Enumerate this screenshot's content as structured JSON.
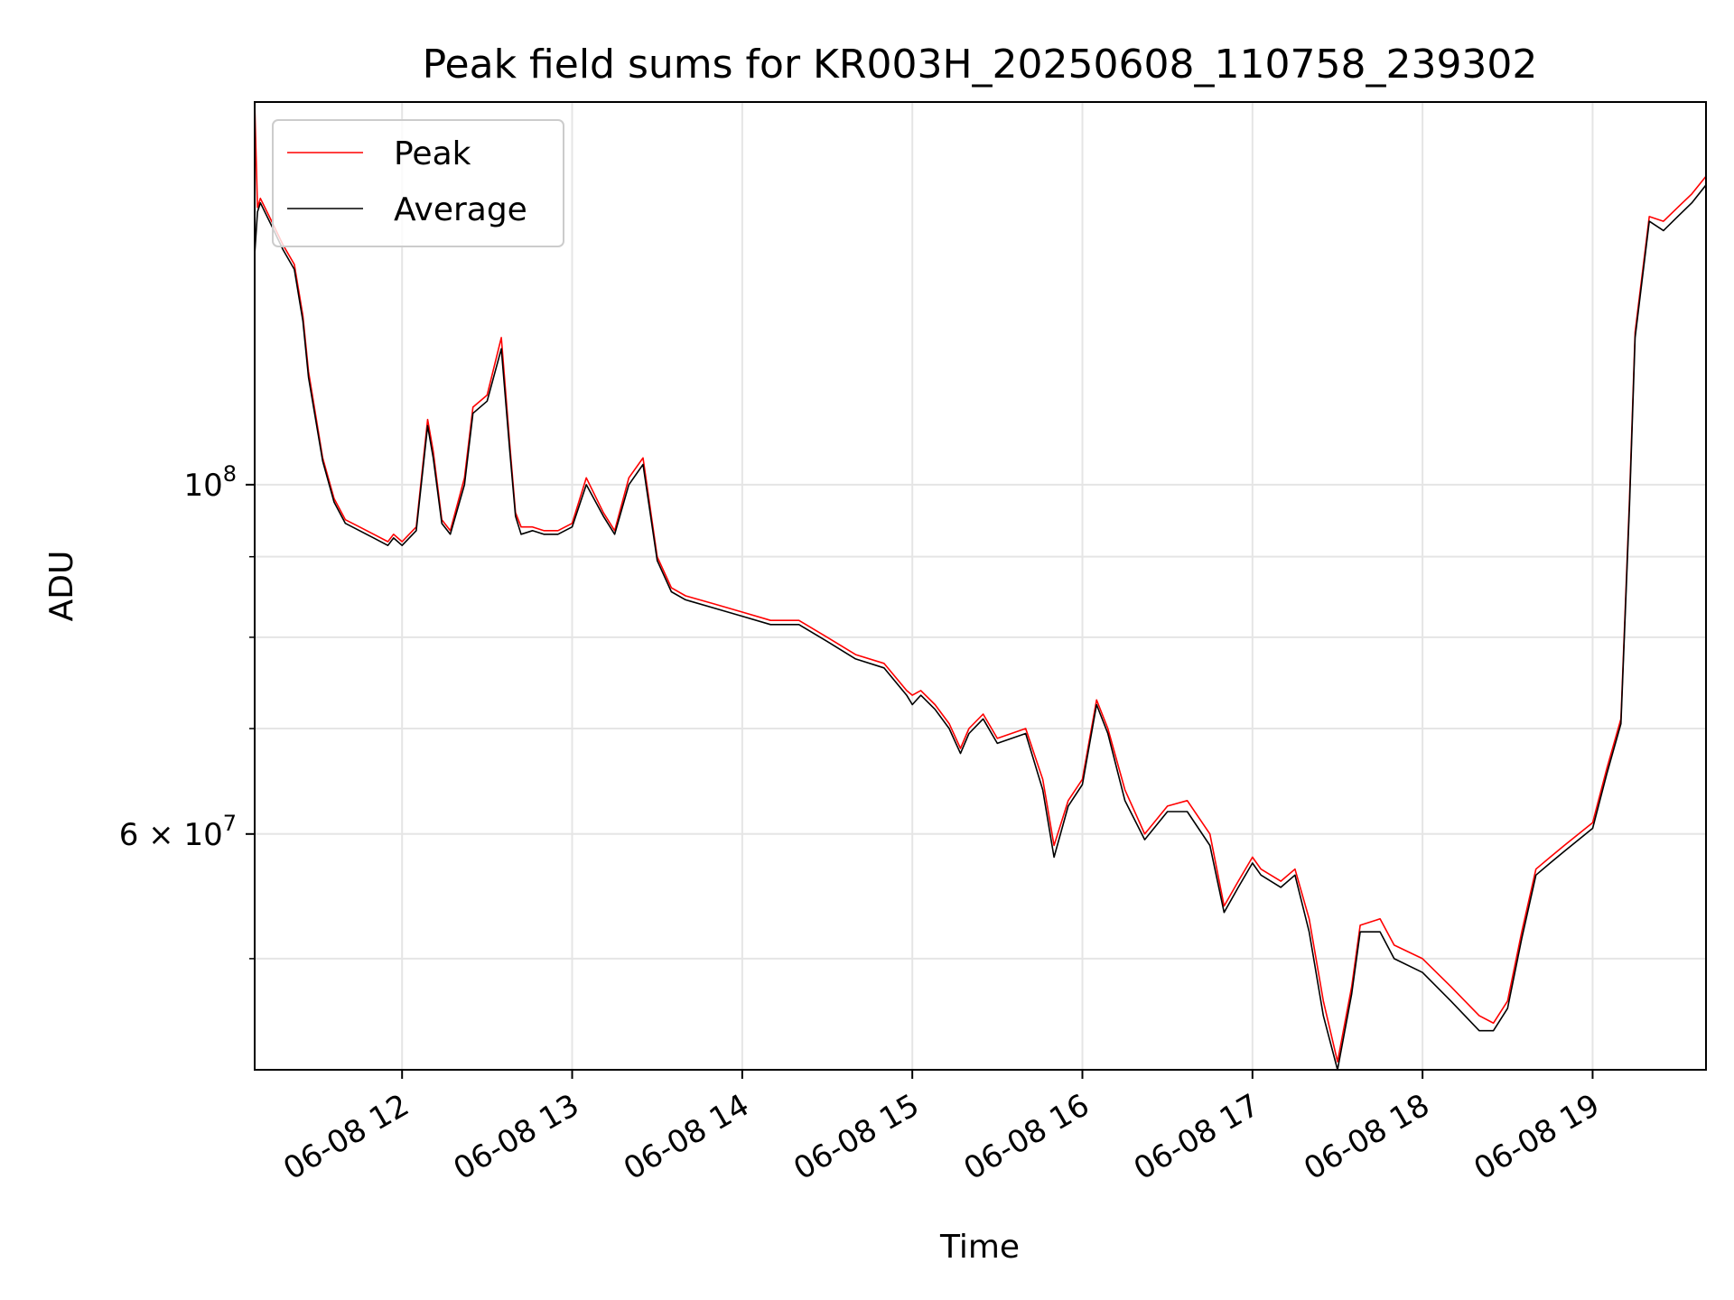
{
  "chart_data": {
    "type": "line",
    "title": "Peak field sums for KR003H_20250608_110758_239302",
    "xlabel": "Time",
    "ylabel": "ADU",
    "yscale": "log",
    "xlim": [
      "2025-06-08 11:08",
      "2025-06-08 19:40"
    ],
    "ylim": [
      42500000,
      175000000
    ],
    "grid": true,
    "legend": "top-left",
    "x_ticks": [
      "06-08 12",
      "06-08 13",
      "06-08 14",
      "06-08 15",
      "06-08 16",
      "06-08 17",
      "06-08 18",
      "06-08 19"
    ],
    "y_ticks": [
      {
        "value": 60000000,
        "label": "6 × 10",
        "exp": "7"
      },
      {
        "value": 100000000,
        "label": "10",
        "exp": "8"
      }
    ],
    "y_minor_ticks": [
      50000000,
      70000000,
      80000000,
      90000000
    ],
    "series": [
      {
        "name": "Peak",
        "color": "#ff0000",
        "x": [
          "2025-06-08 11:08",
          "2025-06-08 11:09",
          "2025-06-08 11:10",
          "2025-06-08 11:14",
          "2025-06-08 11:18",
          "2025-06-08 11:22",
          "2025-06-08 11:25",
          "2025-06-08 11:27",
          "2025-06-08 11:32",
          "2025-06-08 11:36",
          "2025-06-08 11:40",
          "2025-06-08 11:45",
          "2025-06-08 11:50",
          "2025-06-08 11:55",
          "2025-06-08 11:57",
          "2025-06-08 12:00",
          "2025-06-08 12:05",
          "2025-06-08 12:09",
          "2025-06-08 12:11",
          "2025-06-08 12:14",
          "2025-06-08 12:17",
          "2025-06-08 12:22",
          "2025-06-08 12:25",
          "2025-06-08 12:30",
          "2025-06-08 12:35",
          "2025-06-08 12:38",
          "2025-06-08 12:40",
          "2025-06-08 12:42",
          "2025-06-08 12:46",
          "2025-06-08 12:50",
          "2025-06-08 12:55",
          "2025-06-08 13:00",
          "2025-06-08 13:05",
          "2025-06-08 13:11",
          "2025-06-08 13:15",
          "2025-06-08 13:20",
          "2025-06-08 13:25",
          "2025-06-08 13:30",
          "2025-06-08 13:35",
          "2025-06-08 13:40",
          "2025-06-08 13:50",
          "2025-06-08 14:00",
          "2025-06-08 14:10",
          "2025-06-08 14:20",
          "2025-06-08 14:30",
          "2025-06-08 14:40",
          "2025-06-08 14:50",
          "2025-06-08 14:58",
          "2025-06-08 15:00",
          "2025-06-08 15:03",
          "2025-06-08 15:08",
          "2025-06-08 15:13",
          "2025-06-08 15:17",
          "2025-06-08 15:20",
          "2025-06-08 15:25",
          "2025-06-08 15:30",
          "2025-06-08 15:40",
          "2025-06-08 15:46",
          "2025-06-08 15:50",
          "2025-06-08 15:55",
          "2025-06-08 16:00",
          "2025-06-08 16:05",
          "2025-06-08 16:09",
          "2025-06-08 16:15",
          "2025-06-08 16:22",
          "2025-06-08 16:30",
          "2025-06-08 16:37",
          "2025-06-08 16:45",
          "2025-06-08 16:50",
          "2025-06-08 16:55",
          "2025-06-08 17:00",
          "2025-06-08 17:03",
          "2025-06-08 17:10",
          "2025-06-08 17:15",
          "2025-06-08 17:20",
          "2025-06-08 17:25",
          "2025-06-08 17:30",
          "2025-06-08 17:35",
          "2025-06-08 17:38",
          "2025-06-08 17:45",
          "2025-06-08 17:50",
          "2025-06-08 18:00",
          "2025-06-08 18:10",
          "2025-06-08 18:20",
          "2025-06-08 18:25",
          "2025-06-08 18:30",
          "2025-06-08 18:35",
          "2025-06-08 18:40",
          "2025-06-08 18:45",
          "2025-06-08 18:50",
          "2025-06-08 19:00",
          "2025-06-08 19:05",
          "2025-06-08 19:10",
          "2025-06-08 19:13",
          "2025-06-08 19:15",
          "2025-06-08 19:20",
          "2025-06-08 19:25",
          "2025-06-08 19:30",
          "2025-06-08 19:35",
          "2025-06-08 19:40"
        ],
        "y": [
          175000000,
          150000000,
          152000000,
          147000000,
          142000000,
          138000000,
          128000000,
          118000000,
          104000000,
          98000000,
          95000000,
          94000000,
          93000000,
          92000000,
          93000000,
          92000000,
          94000000,
          110000000,
          105000000,
          95000000,
          93500000,
          101000000,
          112000000,
          114000000,
          124000000,
          106000000,
          96000000,
          94000000,
          94000000,
          93500000,
          93500000,
          94500000,
          101000000,
          96000000,
          93500000,
          101000000,
          104000000,
          90000000,
          86000000,
          85000000,
          84000000,
          83000000,
          82000000,
          82000000,
          80000000,
          78000000,
          77000000,
          74000000,
          73500000,
          74000000,
          72500000,
          70500000,
          68000000,
          70000000,
          71500000,
          69000000,
          70000000,
          65000000,
          59000000,
          63000000,
          65000000,
          73000000,
          70000000,
          64000000,
          60000000,
          62500000,
          63000000,
          60000000,
          54000000,
          56000000,
          58000000,
          57000000,
          56000000,
          57000000,
          53000000,
          47000000,
          43000000,
          48000000,
          52500000,
          53000000,
          51000000,
          50000000,
          48000000,
          46000000,
          45500000,
          47000000,
          52000000,
          57000000,
          58000000,
          59000000,
          61000000,
          66000000,
          71000000,
          98000000,
          125000000,
          148000000,
          147000000,
          150000000,
          153000000,
          157000000
        ]
      },
      {
        "name": "Average",
        "color": "#000000",
        "x": [
          "2025-06-08 11:08",
          "2025-06-08 11:09",
          "2025-06-08 11:10",
          "2025-06-08 11:14",
          "2025-06-08 11:18",
          "2025-06-08 11:22",
          "2025-06-08 11:25",
          "2025-06-08 11:27",
          "2025-06-08 11:32",
          "2025-06-08 11:36",
          "2025-06-08 11:40",
          "2025-06-08 11:45",
          "2025-06-08 11:50",
          "2025-06-08 11:55",
          "2025-06-08 11:57",
          "2025-06-08 12:00",
          "2025-06-08 12:05",
          "2025-06-08 12:09",
          "2025-06-08 12:11",
          "2025-06-08 12:14",
          "2025-06-08 12:17",
          "2025-06-08 12:22",
          "2025-06-08 12:25",
          "2025-06-08 12:30",
          "2025-06-08 12:35",
          "2025-06-08 12:38",
          "2025-06-08 12:40",
          "2025-06-08 12:42",
          "2025-06-08 12:46",
          "2025-06-08 12:50",
          "2025-06-08 12:55",
          "2025-06-08 13:00",
          "2025-06-08 13:05",
          "2025-06-08 13:11",
          "2025-06-08 13:15",
          "2025-06-08 13:20",
          "2025-06-08 13:25",
          "2025-06-08 13:30",
          "2025-06-08 13:35",
          "2025-06-08 13:40",
          "2025-06-08 13:50",
          "2025-06-08 14:00",
          "2025-06-08 14:10",
          "2025-06-08 14:20",
          "2025-06-08 14:30",
          "2025-06-08 14:40",
          "2025-06-08 14:50",
          "2025-06-08 14:58",
          "2025-06-08 15:00",
          "2025-06-08 15:03",
          "2025-06-08 15:08",
          "2025-06-08 15:13",
          "2025-06-08 15:17",
          "2025-06-08 15:20",
          "2025-06-08 15:25",
          "2025-06-08 15:30",
          "2025-06-08 15:40",
          "2025-06-08 15:46",
          "2025-06-08 15:50",
          "2025-06-08 15:55",
          "2025-06-08 16:00",
          "2025-06-08 16:05",
          "2025-06-08 16:09",
          "2025-06-08 16:15",
          "2025-06-08 16:22",
          "2025-06-08 16:30",
          "2025-06-08 16:37",
          "2025-06-08 16:45",
          "2025-06-08 16:50",
          "2025-06-08 16:55",
          "2025-06-08 17:00",
          "2025-06-08 17:03",
          "2025-06-08 17:10",
          "2025-06-08 17:15",
          "2025-06-08 17:20",
          "2025-06-08 17:25",
          "2025-06-08 17:30",
          "2025-06-08 17:35",
          "2025-06-08 17:38",
          "2025-06-08 17:45",
          "2025-06-08 17:50",
          "2025-06-08 18:00",
          "2025-06-08 18:10",
          "2025-06-08 18:20",
          "2025-06-08 18:25",
          "2025-06-08 18:30",
          "2025-06-08 18:35",
          "2025-06-08 18:40",
          "2025-06-08 18:45",
          "2025-06-08 18:50",
          "2025-06-08 19:00",
          "2025-06-08 19:05",
          "2025-06-08 19:10",
          "2025-06-08 19:13",
          "2025-06-08 19:15",
          "2025-06-08 19:20",
          "2025-06-08 19:25",
          "2025-06-08 19:30",
          "2025-06-08 19:35",
          "2025-06-08 19:40"
        ],
        "y": [
          140000000,
          149000000,
          151000000,
          146000000,
          141000000,
          137000000,
          127000000,
          117000000,
          103500000,
          97500000,
          94500000,
          93500000,
          92500000,
          91500000,
          92500000,
          91500000,
          93500000,
          109000000,
          104000000,
          94500000,
          93000000,
          100000000,
          111000000,
          113000000,
          122000000,
          105000000,
          95500000,
          93000000,
          93500000,
          93000000,
          93000000,
          94000000,
          100000000,
          95500000,
          93000000,
          100000000,
          103000000,
          89500000,
          85500000,
          84500000,
          83500000,
          82500000,
          81500000,
          81500000,
          79500000,
          77500000,
          76500000,
          73500000,
          72500000,
          73500000,
          72000000,
          70000000,
          67500000,
          69500000,
          71000000,
          68500000,
          69500000,
          64000000,
          58000000,
          62500000,
          64500000,
          72500000,
          69500000,
          63000000,
          59500000,
          62000000,
          62000000,
          59000000,
          53500000,
          55500000,
          57500000,
          56500000,
          55500000,
          56500000,
          52000000,
          46000000,
          42500000,
          47500000,
          52000000,
          52000000,
          50000000,
          49000000,
          47000000,
          45000000,
          45000000,
          46500000,
          51500000,
          56500000,
          57500000,
          58500000,
          60500000,
          65500000,
          70500000,
          97000000,
          124000000,
          147000000,
          145000000,
          148000000,
          151000000,
          155000000
        ]
      }
    ]
  }
}
